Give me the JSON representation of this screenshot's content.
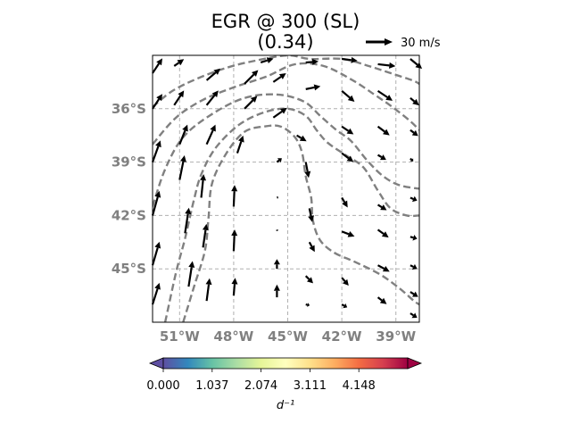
{
  "chart_data": {
    "type": "vector-field",
    "title_line1": "EGR @ 300 (SL)",
    "title_line2": "(0.34)",
    "quiver_key": {
      "label": "30 m/s",
      "speed": 30
    },
    "x_ticks": [
      "51°W",
      "48°W",
      "45°W",
      "42°W",
      "39°W"
    ],
    "x_tick_values": [
      -51,
      -48,
      -45,
      -42,
      -39
    ],
    "y_ticks": [
      "36°S",
      "39°S",
      "42°S",
      "45°S"
    ],
    "y_tick_values": [
      -36,
      -39,
      -42,
      -45
    ],
    "xlim": [
      -52.5,
      -37.7
    ],
    "ylim": [
      -48,
      -33
    ],
    "grid": true,
    "grid_style": "dashed",
    "contour_color": "#808080",
    "vector_color": "#000000",
    "contours": [
      [
        [
          -52.5,
          -35.9
        ],
        [
          -51.4,
          -35.0
        ],
        [
          -50.0,
          -34.3
        ],
        [
          -48.4,
          -33.7
        ],
        [
          -46.8,
          -33.3
        ],
        [
          -45.0,
          -33.0
        ],
        [
          -43.8,
          -33.2
        ],
        [
          -42.0,
          -33.2
        ],
        [
          -40.5,
          -33.6
        ],
        [
          -39.3,
          -34.0
        ],
        [
          -38.1,
          -34.4
        ],
        [
          -37.7,
          -34.6
        ]
      ],
      [
        [
          -52.5,
          -38.0
        ],
        [
          -51.2,
          -36.5
        ],
        [
          -49.7,
          -35.5
        ],
        [
          -48.0,
          -34.8
        ],
        [
          -46.2,
          -34.2
        ],
        [
          -44.6,
          -33.5
        ],
        [
          -43.0,
          -33.6
        ],
        [
          -41.4,
          -34.4
        ],
        [
          -40.2,
          -35.2
        ],
        [
          -39.2,
          -35.9
        ],
        [
          -38.2,
          -36.7
        ],
        [
          -37.7,
          -37.2
        ]
      ],
      [
        [
          -52.5,
          -41.5
        ],
        [
          -51.8,
          -39.4
        ],
        [
          -50.8,
          -37.6
        ],
        [
          -49.2,
          -36.3
        ],
        [
          -47.4,
          -35.4
        ],
        [
          -45.6,
          -35.2
        ],
        [
          -44.1,
          -35.6
        ],
        [
          -43.2,
          -36.4
        ],
        [
          -42.3,
          -37.2
        ],
        [
          -41.5,
          -37.8
        ],
        [
          -40.6,
          -38.9
        ],
        [
          -39.7,
          -39.8
        ],
        [
          -38.8,
          -40.3
        ],
        [
          -37.7,
          -40.5
        ]
      ],
      [
        [
          -51.8,
          -48.0
        ],
        [
          -51.2,
          -45.2
        ],
        [
          -50.7,
          -43.3
        ],
        [
          -50.2,
          -41.1
        ],
        [
          -49.8,
          -39.7
        ],
        [
          -49.0,
          -38.2
        ],
        [
          -47.7,
          -36.9
        ],
        [
          -46.3,
          -36.2
        ],
        [
          -45.0,
          -36.0
        ],
        [
          -44.0,
          -36.4
        ],
        [
          -43.4,
          -37.2
        ],
        [
          -42.8,
          -37.9
        ],
        [
          -41.8,
          -38.6
        ],
        [
          -40.8,
          -39.3
        ],
        [
          -40.0,
          -40.6
        ],
        [
          -39.3,
          -41.6
        ],
        [
          -38.4,
          -42.0
        ],
        [
          -37.7,
          -42.0
        ]
      ],
      [
        [
          -50.8,
          -48.0
        ],
        [
          -50.2,
          -46.0
        ],
        [
          -49.6,
          -44.0
        ],
        [
          -49.4,
          -42.2
        ],
        [
          -49.2,
          -40.2
        ],
        [
          -48.4,
          -38.5
        ],
        [
          -47.4,
          -37.3
        ],
        [
          -46.3,
          -37.0
        ],
        [
          -45.4,
          -37.0
        ],
        [
          -44.6,
          -37.6
        ],
        [
          -44.2,
          -38.5
        ],
        [
          -44.0,
          -39.8
        ],
        [
          -43.7,
          -41.0
        ],
        [
          -43.6,
          -42.3
        ],
        [
          -43.2,
          -43.4
        ],
        [
          -42.4,
          -44.1
        ],
        [
          -41.3,
          -44.6
        ],
        [
          -39.9,
          -45.3
        ],
        [
          -38.8,
          -46.1
        ],
        [
          -38.0,
          -46.8
        ],
        [
          -37.7,
          -47.0
        ]
      ]
    ],
    "vectors": [
      {
        "x": -52.5,
        "y": -34.0,
        "u": 1.0,
        "v": 1.5
      },
      {
        "x": -52.5,
        "y": -36.0,
        "u": 1.0,
        "v": 1.5
      },
      {
        "x": -52.5,
        "y": -39.0,
        "u": 0.8,
        "v": 2.2
      },
      {
        "x": -52.5,
        "y": -42.0,
        "u": 0.7,
        "v": 2.5
      },
      {
        "x": -52.5,
        "y": -44.8,
        "u": 0.7,
        "v": 2.4
      },
      {
        "x": -52.5,
        "y": -47.0,
        "u": 0.7,
        "v": 2.2
      },
      {
        "x": -51.3,
        "y": -33.6,
        "u": 1.0,
        "v": 0.7
      },
      {
        "x": -51.3,
        "y": -35.8,
        "u": 1.0,
        "v": 1.5
      },
      {
        "x": -51.0,
        "y": -38.0,
        "u": 0.8,
        "v": 2.0
      },
      {
        "x": -51.0,
        "y": -40.0,
        "u": 0.5,
        "v": 2.5
      },
      {
        "x": -50.7,
        "y": -43.0,
        "u": 0.4,
        "v": 2.6
      },
      {
        "x": -50.5,
        "y": -46.0,
        "u": 0.4,
        "v": 2.6
      },
      {
        "x": -49.5,
        "y": -34.4,
        "u": 1.4,
        "v": 1.2
      },
      {
        "x": -49.5,
        "y": -35.8,
        "u": 1.2,
        "v": 1.5
      },
      {
        "x": -49.5,
        "y": -38.0,
        "u": 0.9,
        "v": 2.0
      },
      {
        "x": -49.8,
        "y": -41.0,
        "u": 0.25,
        "v": 2.4
      },
      {
        "x": -49.7,
        "y": -43.8,
        "u": 0.35,
        "v": 2.4
      },
      {
        "x": -49.5,
        "y": -46.8,
        "u": 0.3,
        "v": 2.3
      },
      {
        "x": -47.4,
        "y": -34.6,
        "u": 1.4,
        "v": 1.4
      },
      {
        "x": -47.4,
        "y": -36.0,
        "u": 1.3,
        "v": 1.3
      },
      {
        "x": -47.8,
        "y": -38.5,
        "u": 0.6,
        "v": 1.8
      },
      {
        "x": -48.0,
        "y": -41.5,
        "u": 0.1,
        "v": 2.2
      },
      {
        "x": -48.0,
        "y": -44.0,
        "u": 0.1,
        "v": 2.2
      },
      {
        "x": -48.0,
        "y": -46.5,
        "u": 0.15,
        "v": 1.8
      },
      {
        "x": -46.5,
        "y": -33.4,
        "u": 1.3,
        "v": 0.4
      },
      {
        "x": -45.8,
        "y": -34.5,
        "u": 1.3,
        "v": 0.9
      },
      {
        "x": -45.8,
        "y": -36.5,
        "u": 1.4,
        "v": 1.0
      },
      {
        "x": -45.6,
        "y": -39.0,
        "u": 0.5,
        "v": 0.4
      },
      {
        "x": -45.6,
        "y": -41.0,
        "u": 0.15,
        "v": 0.05
      },
      {
        "x": -45.6,
        "y": -42.8,
        "u": 0.05,
        "v": -0.15
      },
      {
        "x": -45.6,
        "y": -45.0,
        "u": 0.0,
        "v": 1.0
      },
      {
        "x": -45.6,
        "y": -46.6,
        "u": 0.0,
        "v": 1.3
      },
      {
        "x": -44.0,
        "y": -33.4,
        "u": 1.3,
        "v": 0.1
      },
      {
        "x": -44.0,
        "y": -34.9,
        "u": 1.5,
        "v": 0.3
      },
      {
        "x": -44.5,
        "y": -37.5,
        "u": 1.0,
        "v": -0.6
      },
      {
        "x": -44.0,
        "y": -39.0,
        "u": 0.3,
        "v": -1.6
      },
      {
        "x": -43.8,
        "y": -41.6,
        "u": 0.3,
        "v": -1.4
      },
      {
        "x": -43.8,
        "y": -43.5,
        "u": 0.55,
        "v": -1.0
      },
      {
        "x": -44.0,
        "y": -45.4,
        "u": 0.75,
        "v": -0.75
      },
      {
        "x": -44.0,
        "y": -47.0,
        "u": 0.4,
        "v": -0.1
      },
      {
        "x": -42.0,
        "y": -33.2,
        "u": 1.6,
        "v": -0.2
      },
      {
        "x": -42.0,
        "y": -35.0,
        "u": 1.3,
        "v": -1.1
      },
      {
        "x": -42.0,
        "y": -37.0,
        "u": 1.2,
        "v": -0.8
      },
      {
        "x": -42.0,
        "y": -38.5,
        "u": 1.2,
        "v": -0.9
      },
      {
        "x": -42.0,
        "y": -41.0,
        "u": 0.6,
        "v": -1.0
      },
      {
        "x": -42.0,
        "y": -42.9,
        "u": 1.3,
        "v": -0.5
      },
      {
        "x": -42.0,
        "y": -45.5,
        "u": 0.7,
        "v": -0.8
      },
      {
        "x": -42.0,
        "y": -47.0,
        "u": 0.55,
        "v": -0.3
      },
      {
        "x": -40.0,
        "y": -33.5,
        "u": 1.8,
        "v": -0.2
      },
      {
        "x": -40.0,
        "y": -35.0,
        "u": 1.5,
        "v": -1.0
      },
      {
        "x": -40.0,
        "y": -37.0,
        "u": 1.2,
        "v": -0.9
      },
      {
        "x": -40.0,
        "y": -38.6,
        "u": 0.85,
        "v": -0.5
      },
      {
        "x": -40.0,
        "y": -41.4,
        "u": 0.9,
        "v": -0.55
      },
      {
        "x": -40.0,
        "y": -42.8,
        "u": 1.1,
        "v": -0.8
      },
      {
        "x": -40.0,
        "y": -44.8,
        "u": 1.2,
        "v": -0.65
      },
      {
        "x": -40.0,
        "y": -46.6,
        "u": 0.9,
        "v": -0.7
      },
      {
        "x": -38.2,
        "y": -33.2,
        "u": 1.2,
        "v": -1.0
      },
      {
        "x": -38.2,
        "y": -35.4,
        "u": 0.9,
        "v": -0.75
      },
      {
        "x": -38.2,
        "y": -37.2,
        "u": 0.8,
        "v": -0.6
      },
      {
        "x": -38.2,
        "y": -38.8,
        "u": 0.3,
        "v": -0.3
      },
      {
        "x": -38.2,
        "y": -41.0,
        "u": 0.7,
        "v": -0.3
      },
      {
        "x": -38.2,
        "y": -43.2,
        "u": 0.7,
        "v": -0.2
      },
      {
        "x": -38.2,
        "y": -44.8,
        "u": 0.7,
        "v": -0.35
      },
      {
        "x": -38.2,
        "y": -46.3,
        "u": 0.8,
        "v": -0.5
      },
      {
        "x": -38.2,
        "y": -47.5,
        "u": 0.7,
        "v": -0.45
      }
    ],
    "colorbar": {
      "cmap": "Spectral_r",
      "ticks": [
        "0.000",
        "1.037",
        "2.074",
        "3.111",
        "4.148"
      ],
      "tick_values": [
        0.0,
        1.037,
        2.074,
        3.111,
        4.148
      ],
      "range": [
        0.0,
        5.185
      ],
      "extend": "both",
      "label": "d⁻¹",
      "colors": [
        "#5e4fa2",
        "#3288bd",
        "#66c2a5",
        "#abdda4",
        "#e6f598",
        "#ffffbf",
        "#fee08b",
        "#fdae61",
        "#f46d43",
        "#d53e4f",
        "#9e0142"
      ]
    }
  }
}
